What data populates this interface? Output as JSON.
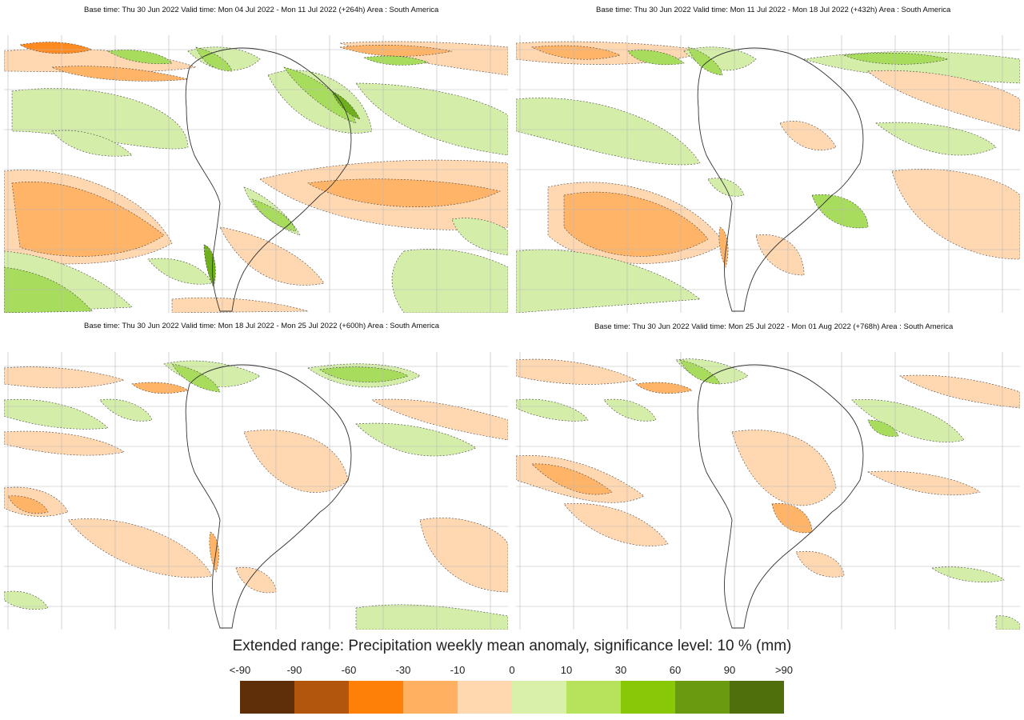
{
  "panels": [
    {
      "title": "Base time: Thu 30 Jun 2022 Valid time: Mon 04 Jul 2022 - Mon 11 Jul 2022 (+264h) Area : South America"
    },
    {
      "title": "Base time: Thu 30 Jun 2022 Valid time: Mon 11 Jul 2022 - Mon 18 Jul 2022 (+432h) Area : South America"
    },
    {
      "title": "Base time: Thu 30 Jun 2022 Valid time: Mon 18 Jul 2022 - Mon 25 Jul 2022 (+600h) Area : South America"
    },
    {
      "title": "Base time: Thu 30 Jun 2022 Valid time: Mon 25 Jul 2022 - Mon 01 Aug 2022 (+768h) Area : South America"
    }
  ],
  "legend": {
    "title": "Extended range: Precipitation weekly mean anomaly, significance level: 10 % (mm)",
    "ticks": [
      "<-90",
      "-90",
      "-60",
      "-30",
      "-10",
      "0",
      "10",
      "30",
      "60",
      "90",
      ">90"
    ],
    "colors": [
      "#5e2f08",
      "#b2560e",
      "#ff8008",
      "#ffb061",
      "#ffd8b0",
      "#d8f0a8",
      "#b6e25c",
      "#88c806",
      "#6a9a10",
      "#4f6e0c"
    ]
  },
  "map_colors": {
    "dry_strong": "#ff8a20",
    "dry_medium": "#ffb468",
    "dry_light": "#ffd8b2",
    "wet_light": "#d4eeaa",
    "wet_medium": "#a8dc5c",
    "wet_strong": "#6fae1c",
    "grid": "#b7b7b7",
    "coast": "#333333"
  }
}
